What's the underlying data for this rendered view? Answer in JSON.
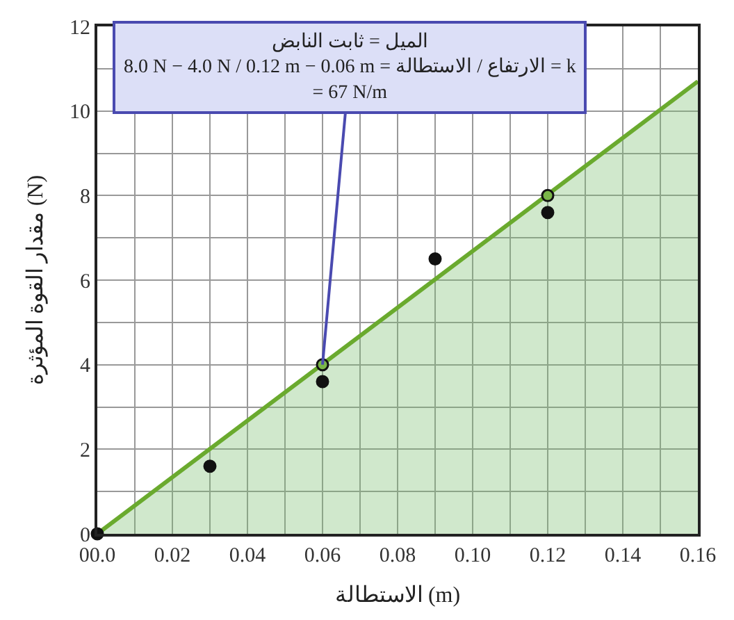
{
  "chart_data": {
    "type": "scatter",
    "xlabel": "الاستطالة (m)",
    "ylabel": "مقدار القوة المؤثرة (N)",
    "series": [
      {
        "type": "area",
        "marker": "none",
        "color": "#6aaa2e",
        "x": [
          0,
          0.16
        ],
        "values": [
          0,
          10.7
        ]
      },
      {
        "color": "#111111",
        "x": [
          0,
          0.03,
          0.06,
          0.09,
          0.12
        ],
        "values": [
          0,
          1.6,
          3.6,
          6.5,
          7.6
        ]
      },
      {
        "color": "#7ab648",
        "x": [
          0.06,
          0.12
        ],
        "values": [
          4,
          8
        ]
      }
    ],
    "annotations": [
      {
        "text": "الميل = ثابت النابض\n8.0 N − 4.0 N / 0.12 m − 0.06 m = الارتفاع / الاستطالة = k\n= 67 N/m",
        "x": 0.06,
        "y": 4
      }
    ],
    "xlim": [
      0,
      0.16
    ],
    "xticks": [
      {
        "value": 0,
        "label": "00.0"
      },
      0.02,
      0.04,
      0.06,
      0.08,
      {
        "value": 0.1,
        "label": "0.10"
      },
      0.12,
      0.14,
      0.16
    ],
    "ylim": [
      0,
      12
    ],
    "yticks": [
      0,
      2,
      4,
      6,
      8,
      10,
      12
    ],
    "grid": true,
    "marker": "circle"
  }
}
